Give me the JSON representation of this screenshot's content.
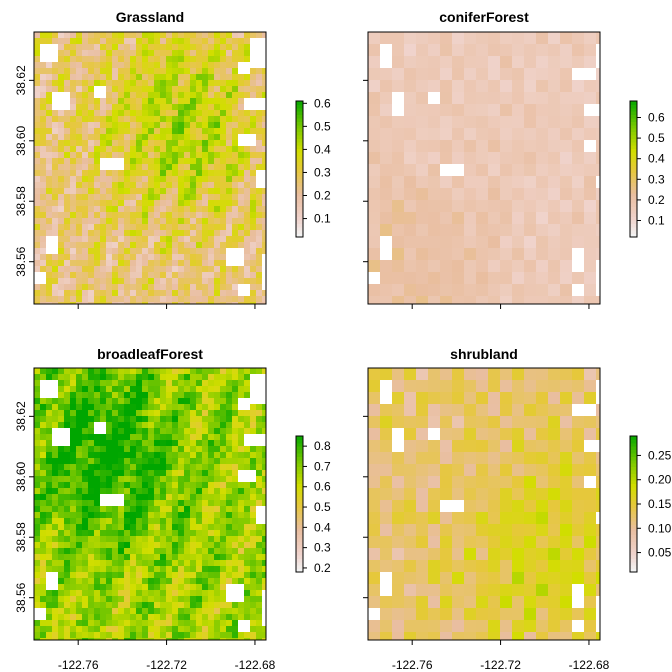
{
  "chart_data": [
    {
      "type": "heatmap",
      "title": "Grassland",
      "x_ticks": [
        "-122.76",
        "-122.72",
        "-122.68"
      ],
      "y_ticks": [
        "38.56",
        "38.58",
        "38.60",
        "38.62"
      ],
      "xlim": [
        -122.78,
        -122.675
      ],
      "ylim": [
        38.546,
        38.636
      ],
      "show_x_labels": false,
      "legend": {
        "ticks": [
          "0.1",
          "0.2",
          "0.3",
          "0.4",
          "0.5",
          "0.6"
        ],
        "range": [
          0.02,
          0.61
        ],
        "placement": "right"
      },
      "texture": {
        "style": "smooth",
        "base": 0.18,
        "variation": 0.2,
        "grain": 7,
        "hot_x": 0.62,
        "hot_y": 0.33
      }
    },
    {
      "type": "heatmap",
      "title": "coniferForest",
      "x_ticks": [
        "-122.76",
        "-122.72",
        "-122.68"
      ],
      "y_ticks": [
        "38.56",
        "38.58",
        "38.60",
        "38.62"
      ],
      "xlim": [
        -122.78,
        -122.675
      ],
      "ylim": [
        38.546,
        38.636
      ],
      "show_x_labels": false,
      "legend": {
        "ticks": [
          "0.1",
          "0.2",
          "0.3",
          "0.4",
          "0.5",
          "0.6"
        ],
        "range": [
          0.02,
          0.68
        ],
        "placement": "right"
      },
      "texture": {
        "style": "blocky",
        "base": 0.13,
        "variation": 0.07,
        "grain": 11,
        "hot_x": 0.15,
        "hot_y": 0.8
      }
    },
    {
      "type": "heatmap",
      "title": "broadleafForest",
      "x_ticks": [
        "-122.76",
        "-122.72",
        "-122.68"
      ],
      "y_ticks": [
        "38.56",
        "38.58",
        "38.60",
        "38.62"
      ],
      "xlim": [
        -122.78,
        -122.675
      ],
      "ylim": [
        38.546,
        38.636
      ],
      "show_x_labels": true,
      "legend": {
        "ticks": [
          "0.2",
          "0.3",
          "0.4",
          "0.5",
          "0.6",
          "0.7",
          "0.8"
        ],
        "range": [
          0.18,
          0.85
        ],
        "placement": "right"
      },
      "texture": {
        "style": "smooth",
        "base": 0.58,
        "variation": 0.22,
        "grain": 5,
        "hot_x": 0.3,
        "hot_y": 0.3
      }
    },
    {
      "type": "heatmap",
      "title": "shrubland",
      "x_ticks": [
        "-122.76",
        "-122.72",
        "-122.68"
      ],
      "y_ticks": [
        "38.56",
        "38.58",
        "38.60",
        "38.62"
      ],
      "xlim": [
        -122.78,
        -122.675
      ],
      "ylim": [
        38.546,
        38.636
      ],
      "show_x_labels": true,
      "legend": {
        "ticks": [
          "0.05",
          "0.10",
          "0.15",
          "0.20",
          "0.25"
        ],
        "range": [
          0.01,
          0.29
        ],
        "placement": "right"
      },
      "texture": {
        "style": "blocky",
        "base": 0.1,
        "variation": 0.06,
        "grain": 9,
        "hot_x": 0.7,
        "hot_y": 0.65
      }
    }
  ]
}
